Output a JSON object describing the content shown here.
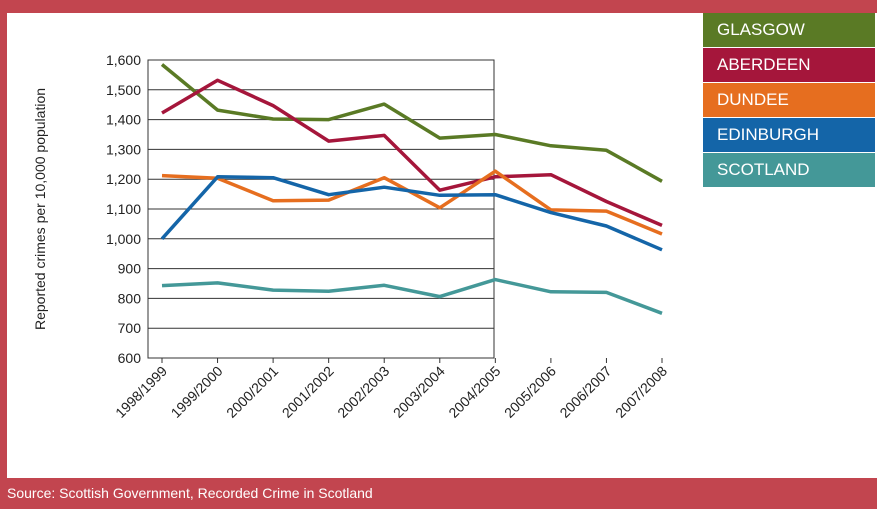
{
  "footer": {
    "source": "Source: Scottish Government, Recorded Crime in Scotland"
  },
  "chart_data": {
    "type": "line",
    "title": "",
    "xlabel": "",
    "ylabel": "Reported crimes per 10,000 population",
    "ylim": [
      600,
      1600
    ],
    "yticks": [
      600,
      700,
      800,
      900,
      1000,
      1100,
      1200,
      1300,
      1400,
      1500,
      1600
    ],
    "ytick_labels": [
      "600",
      "700",
      "800",
      "900",
      "1,000",
      "1,100",
      "1,200",
      "1,300",
      "1,400",
      "1,500",
      "1,600"
    ],
    "categories": [
      "1998/1999",
      "1999/2000",
      "2000/2001",
      "2001/2002",
      "2002/2003",
      "2003/2004",
      "2004/2005",
      "2005/2006",
      "2006/2007",
      "2007/2008"
    ],
    "legend_position": "top-right",
    "series": [
      {
        "name": "GLASGOW",
        "color": "#5a7a25",
        "values": [
          1585,
          1432,
          1402,
          1400,
          1452,
          1338,
          1350,
          1312,
          1297,
          1193
        ]
      },
      {
        "name": "ABERDEEN",
        "color": "#a5163b",
        "values": [
          1422,
          1532,
          1447,
          1328,
          1347,
          1163,
          1208,
          1215,
          1125,
          1045
        ]
      },
      {
        "name": "DUNDEE",
        "color": "#e66e1f",
        "values": [
          1212,
          1203,
          1128,
          1130,
          1205,
          1104,
          1227,
          1097,
          1093,
          1016
        ]
      },
      {
        "name": "EDINBURGH",
        "color": "#1465a8",
        "values": [
          1000,
          1208,
          1205,
          1148,
          1173,
          1146,
          1148,
          1088,
          1043,
          963
        ]
      },
      {
        "name": "SCOTLAND",
        "color": "#449898",
        "values": [
          843,
          852,
          828,
          824,
          844,
          806,
          863,
          822,
          820,
          750
        ]
      }
    ]
  }
}
